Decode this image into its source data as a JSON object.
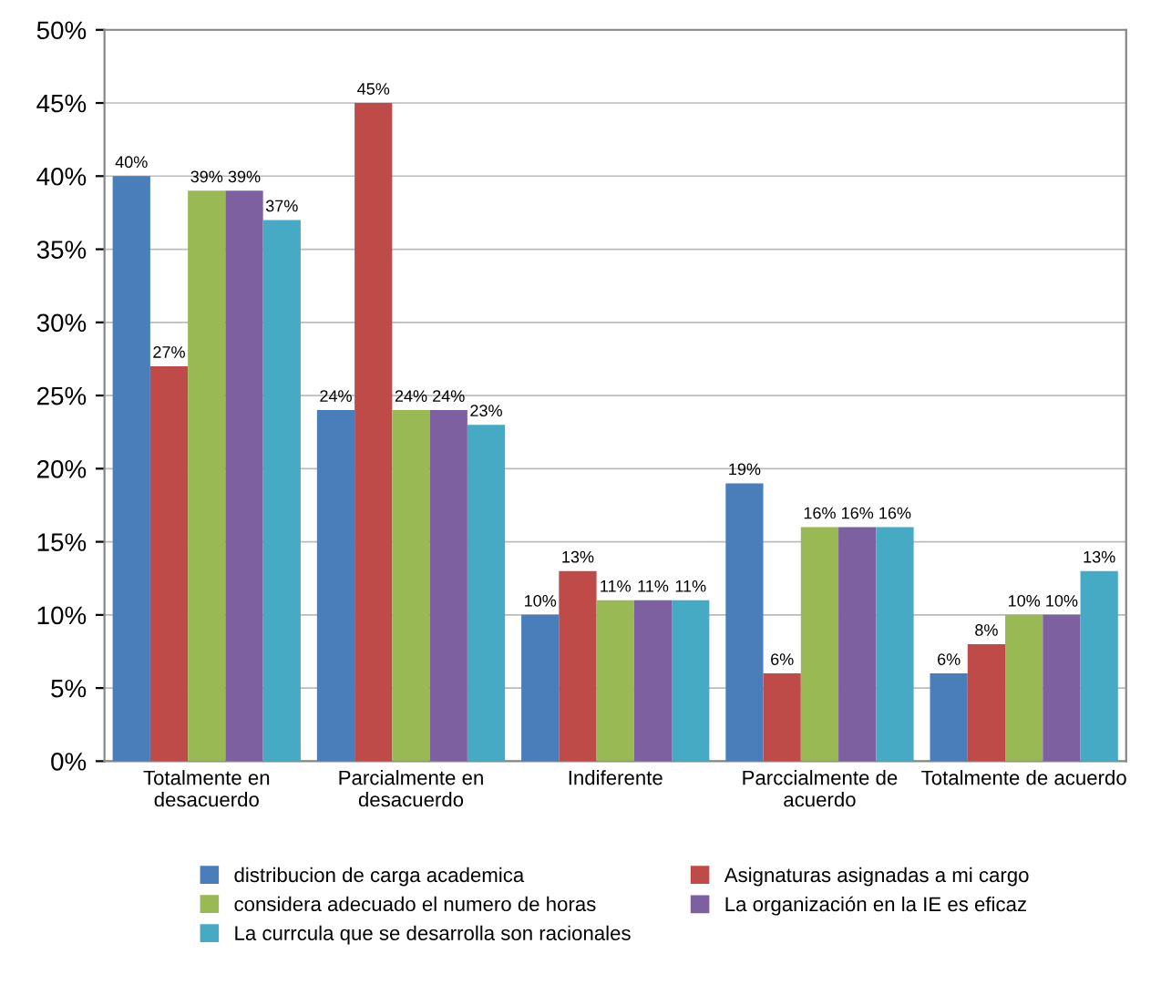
{
  "chart_data": {
    "type": "bar",
    "categories": [
      "Totalmente en\ndesacuerdo",
      "Parcialmente en\ndesacuerdo",
      "Indiferente",
      "Parccialmente de\nacuerdo",
      "Totalmente de acuerdo"
    ],
    "series": [
      {
        "name": "distribucion de carga academica",
        "color": "#4a7ebb",
        "values": [
          40,
          24,
          10,
          19,
          6
        ],
        "value_labels": [
          "40%",
          "24%",
          "10%",
          "19%",
          "6%"
        ]
      },
      {
        "name": "Asignaturas asignadas a mi cargo",
        "color": "#be4b48",
        "values": [
          27,
          45,
          13,
          6,
          8
        ],
        "value_labels": [
          "27%",
          "45%",
          "13%",
          "6%",
          "8%"
        ]
      },
      {
        "name": "considera adecuado el numero de horas",
        "color": "#98b954",
        "values": [
          39,
          24,
          11,
          16,
          10
        ],
        "value_labels": [
          "39%",
          "24%",
          "11%",
          "16%",
          "10%"
        ]
      },
      {
        "name": "La organización en la IE es eficaz",
        "color": "#7d60a0",
        "values": [
          39,
          24,
          11,
          16,
          10
        ],
        "value_labels": [
          "39%",
          "24%",
          "11%",
          "16%",
          "10%"
        ]
      },
      {
        "name": "La currcula que se desarrolla son racionales",
        "color": "#46aac5",
        "values": [
          37,
          23,
          11,
          16,
          13
        ],
        "value_labels": [
          "37%",
          "23%",
          "11%",
          "16%",
          "13%"
        ]
      }
    ],
    "ylim": [
      0,
      50
    ],
    "yticks": [
      {
        "value": 0,
        "label": "0%"
      },
      {
        "value": 5,
        "label": "5%"
      },
      {
        "value": 10,
        "label": "10%"
      },
      {
        "value": 15,
        "label": "15%"
      },
      {
        "value": 20,
        "label": "20%"
      },
      {
        "value": 25,
        "label": "25%"
      },
      {
        "value": 30,
        "label": "30%"
      },
      {
        "value": 35,
        "label": "35%"
      },
      {
        "value": 40,
        "label": "40%"
      },
      {
        "value": 45,
        "label": "45%"
      },
      {
        "value": 50,
        "label": "50%"
      }
    ],
    "grid": "y",
    "legend": "bottom"
  }
}
